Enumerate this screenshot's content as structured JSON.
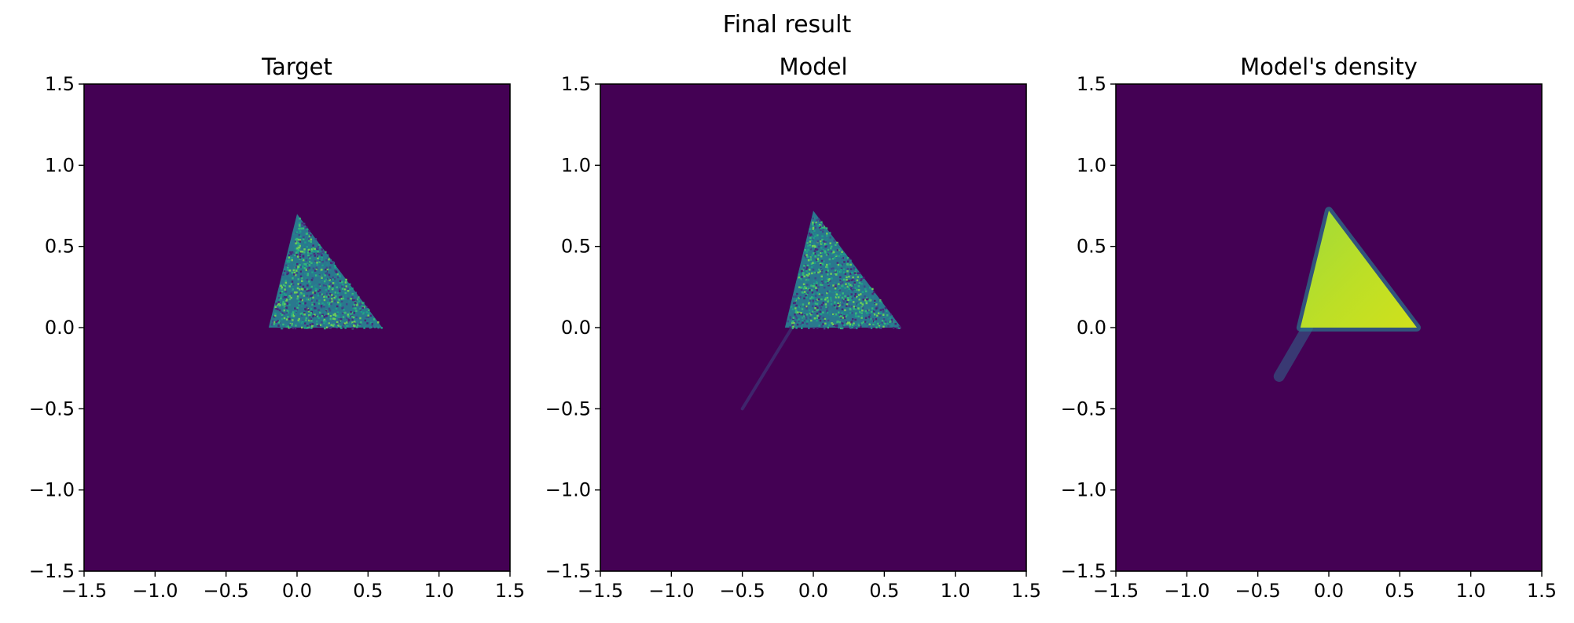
{
  "figure": {
    "suptitle": "Final result"
  },
  "colors": {
    "background": "#440154",
    "axis": "#000000",
    "mid": "#2a788e",
    "bright": "#bddf26"
  },
  "chart_data": [
    {
      "type": "heatmap",
      "title": "Target",
      "xlabel": "",
      "ylabel": "",
      "xlim": [
        -1.5,
        1.5
      ],
      "ylim": [
        -1.5,
        1.5
      ],
      "xticks": [
        "−1.5",
        "−1.0",
        "−0.5",
        "0.0",
        "0.5",
        "1.0",
        "1.5"
      ],
      "yticks": [
        "−1.5",
        "−1.0",
        "−0.5",
        "0.0",
        "0.5",
        "1.0",
        "1.5"
      ],
      "colormap": "viridis",
      "grid": false,
      "support_triangle": [
        [
          -0.2,
          0.0
        ],
        [
          0.6,
          0.0
        ],
        [
          0.0,
          0.7
        ]
      ],
      "texture": "noisy-samples"
    },
    {
      "type": "heatmap",
      "title": "Model",
      "xlabel": "",
      "ylabel": "",
      "xlim": [
        -1.5,
        1.5
      ],
      "ylim": [
        -1.5,
        1.5
      ],
      "xticks": [
        "−1.5",
        "−1.0",
        "−0.5",
        "0.0",
        "0.5",
        "1.0",
        "1.5"
      ],
      "yticks": [
        "−1.5",
        "−1.0",
        "−0.5",
        "0.0",
        "0.5",
        "1.0",
        "1.5"
      ],
      "colormap": "viridis",
      "grid": false,
      "support_triangle": [
        [
          -0.2,
          0.0
        ],
        [
          0.62,
          0.0
        ],
        [
          0.0,
          0.72
        ]
      ],
      "tail": [
        [
          -0.15,
          0.0
        ],
        [
          -0.5,
          -0.5
        ]
      ],
      "texture": "noisy-samples"
    },
    {
      "type": "heatmap",
      "title": "Model's density",
      "xlabel": "",
      "ylabel": "",
      "xlim": [
        -1.5,
        1.5
      ],
      "ylim": [
        -1.5,
        1.5
      ],
      "xticks": [
        "−1.5",
        "−1.0",
        "−0.5",
        "0.0",
        "0.5",
        "1.0",
        "1.5"
      ],
      "yticks": [
        "−1.5",
        "−1.0",
        "−0.5",
        "0.0",
        "0.5",
        "1.0",
        "1.5"
      ],
      "colormap": "viridis",
      "grid": false,
      "support_triangle": [
        [
          -0.2,
          0.0
        ],
        [
          0.62,
          0.0
        ],
        [
          0.0,
          0.72
        ]
      ],
      "tail": [
        [
          -0.15,
          0.0
        ],
        [
          -0.35,
          -0.3
        ]
      ],
      "texture": "smooth-density"
    }
  ]
}
